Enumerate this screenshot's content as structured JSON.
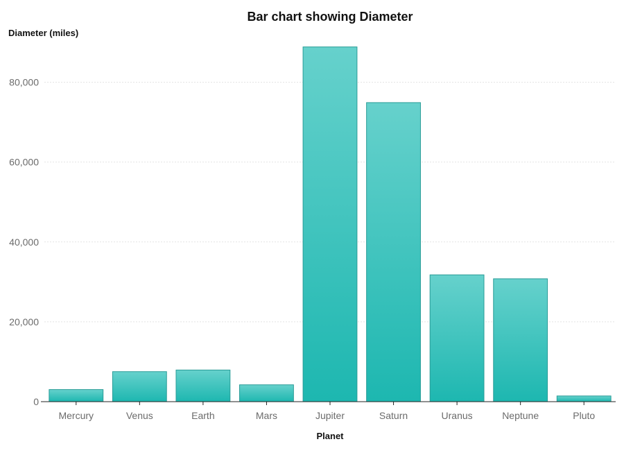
{
  "chart_data": {
    "type": "bar",
    "title": "Bar chart showing Diameter",
    "xlabel": "Planet",
    "ylabel": "Diameter (miles)",
    "categories": [
      "Mercury",
      "Venus",
      "Earth",
      "Mars",
      "Jupiter",
      "Saturn",
      "Uranus",
      "Neptune",
      "Pluto"
    ],
    "values": [
      3030,
      7520,
      7926,
      4222,
      88846,
      74898,
      31763,
      30775,
      1430
    ],
    "ylim": [
      0,
      90000
    ],
    "yticks": [
      0,
      20000,
      40000,
      60000,
      80000
    ],
    "ytick_labels": [
      "0",
      "20,000",
      "40,000",
      "60,000",
      "80,000"
    ],
    "grid": true,
    "legend": "none",
    "colors": {
      "bar_top": "#66d1cc",
      "bar_bottom": "#1db7b0",
      "bar_stroke": "#2a9c97"
    }
  }
}
